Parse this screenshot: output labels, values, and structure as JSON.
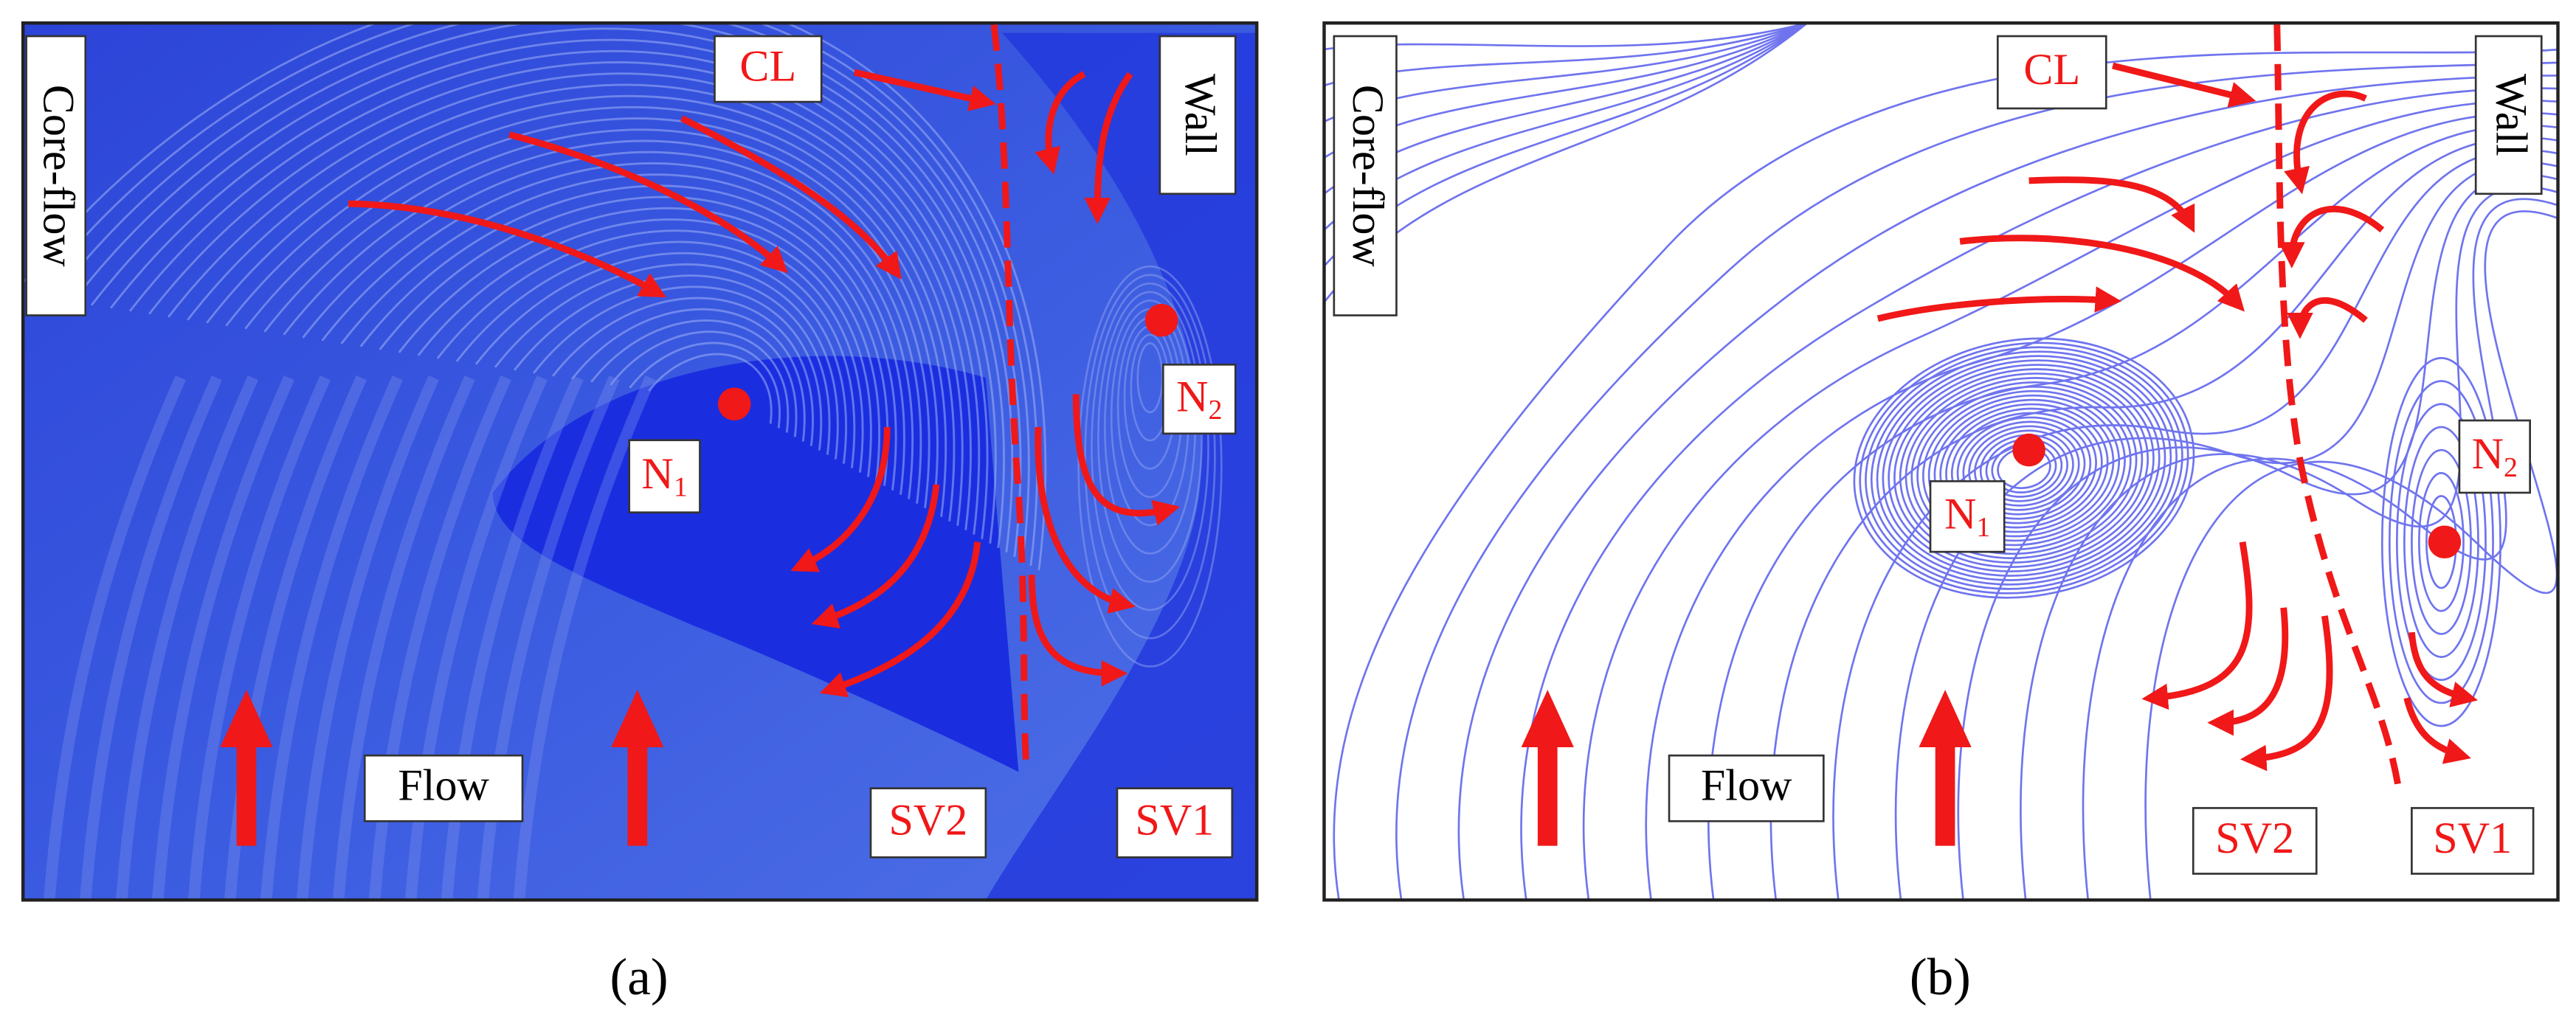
{
  "panels": [
    {
      "caption": "(a)",
      "labels": {
        "core_flow": "Core-flow",
        "cl": "CL",
        "wall": "Wall",
        "n1": {
          "main": "N",
          "sub": "1"
        },
        "n2": {
          "main": "N",
          "sub": "2"
        },
        "flow": "Flow",
        "sv2": "SV2",
        "sv1": "SV1"
      }
    },
    {
      "caption": "(b)",
      "labels": {
        "core_flow": "Core-flow",
        "cl": "CL",
        "wall": "Wall",
        "n1": {
          "main": "N",
          "sub": "1"
        },
        "n2": {
          "main": "N",
          "sub": "2"
        },
        "flow": "Flow",
        "sv2": "SV2",
        "sv1": "SV1"
      }
    }
  ]
}
